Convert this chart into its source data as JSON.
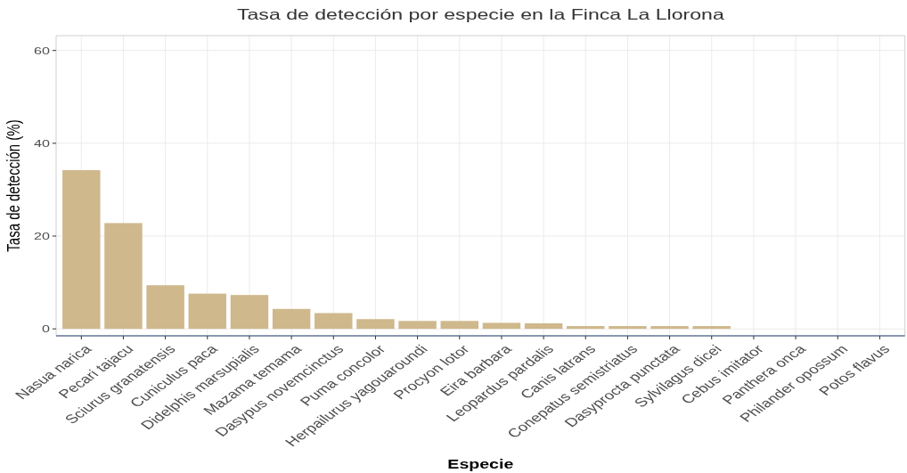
{
  "chart_data": {
    "type": "bar",
    "title": "Tasa de detección por especie en la Finca La Llorona",
    "xlabel": "Especie",
    "ylabel": "Tasa de detección (%)",
    "categories": [
      "Nasua narica",
      "Pecari tajacu",
      "Sciurus granatensis",
      "Cuniculus paca",
      "Didelphis marsupialis",
      "Mazama temama",
      "Dasypus novemcinctus",
      "Puma concolor",
      "Herpailurus yagouaroundi",
      "Procyon lotor",
      "Eira barbara",
      "Leopardus pardalis",
      "Canis latrans",
      "Conepatus semistriatus",
      "Dasyprocta punctata",
      "Sylvilagus dicei",
      "Cebus imitator",
      "Panthera onca",
      "Philander opossum",
      "Potos flavus"
    ],
    "values": [
      34.2,
      22.8,
      9.4,
      7.6,
      7.3,
      4.3,
      3.4,
      2.1,
      1.7,
      1.7,
      1.3,
      1.2,
      0.6,
      0.6,
      0.6,
      0.6,
      0,
      0,
      0,
      0
    ],
    "color": "#cfb88c",
    "ylim": [
      -1.5,
      63.2
    ],
    "yticks": [
      0,
      20,
      40,
      60
    ],
    "grid": true
  }
}
